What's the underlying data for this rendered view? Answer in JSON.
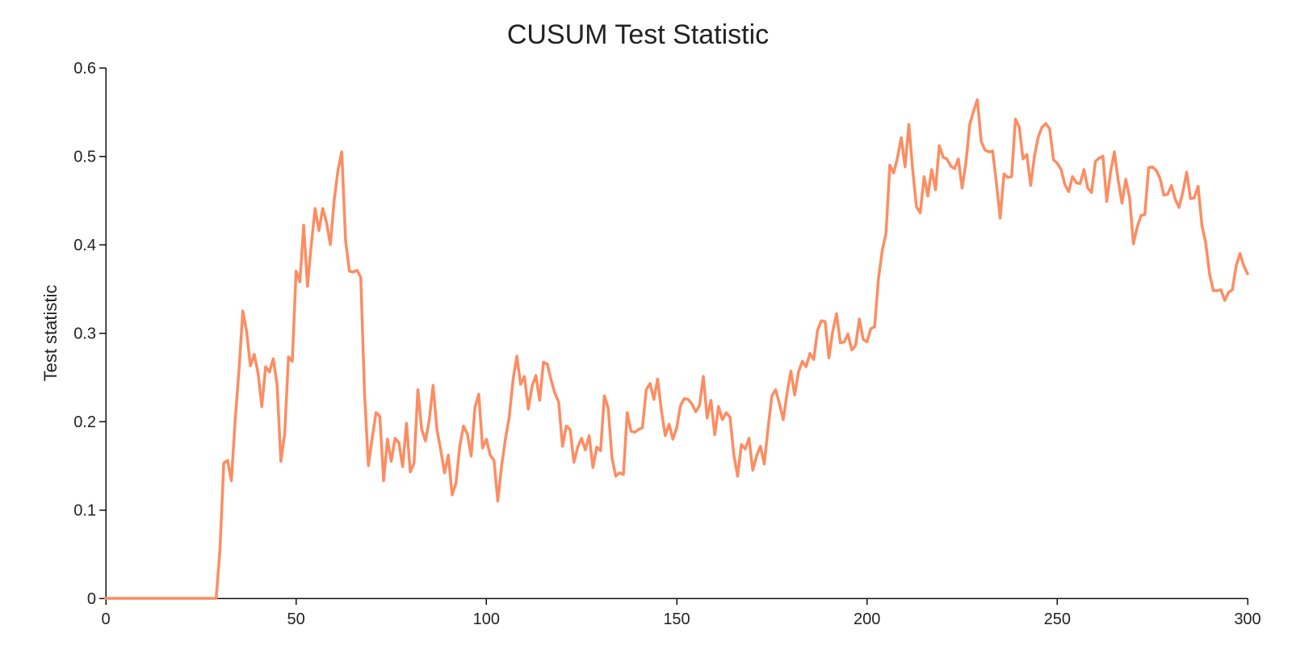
{
  "chart_data": {
    "type": "line",
    "title": "CUSUM Test Statistic",
    "xlabel": "",
    "ylabel": "Test statistic",
    "xlim": [
      0,
      300
    ],
    "ylim": [
      0,
      0.6
    ],
    "xticks": [
      0,
      50,
      100,
      150,
      200,
      250,
      300
    ],
    "yticks": [
      0,
      0.1,
      0.2,
      0.3,
      0.4,
      0.5,
      0.6
    ],
    "xtick_labels": [
      "0",
      "50",
      "100",
      "150",
      "200",
      "250",
      "300"
    ],
    "ytick_labels": [
      "0",
      "0.1",
      "0.2",
      "0.3",
      "0.4",
      "0.5",
      "0.6"
    ],
    "grid": false,
    "legend": "none",
    "series": [
      {
        "color": "#fc8d62",
        "x": [
          0,
          1,
          2,
          3,
          4,
          5,
          6,
          7,
          8,
          9,
          10,
          11,
          12,
          13,
          14,
          15,
          16,
          17,
          18,
          19,
          20,
          21,
          22,
          23,
          24,
          25,
          26,
          27,
          28,
          29,
          30,
          31,
          32,
          33,
          34,
          35,
          36,
          37,
          38,
          39,
          40,
          41,
          42,
          43,
          44,
          45,
          46,
          47,
          48,
          49,
          50,
          51,
          52,
          53,
          54,
          55,
          56,
          57,
          58,
          59,
          60,
          61,
          62,
          63,
          64,
          65,
          66,
          67,
          68,
          69,
          70,
          71,
          72,
          73,
          74,
          75,
          76,
          77,
          78,
          79,
          80,
          81,
          82,
          83,
          84,
          85,
          86,
          87,
          88,
          89,
          90,
          91,
          92,
          93,
          94,
          95,
          96,
          97,
          98,
          99,
          100,
          101,
          102,
          103,
          104,
          105,
          106,
          107,
          108,
          109,
          110,
          111,
          112,
          113,
          114,
          115,
          116,
          117,
          118,
          119,
          120,
          121,
          122,
          123,
          124,
          125,
          126,
          127,
          128,
          129,
          130,
          131,
          132,
          133,
          134,
          135,
          136,
          137,
          138,
          139,
          140,
          141,
          142,
          143,
          144,
          145,
          146,
          147,
          148,
          149,
          150,
          151,
          152,
          153,
          154,
          155,
          156,
          157,
          158,
          159,
          160,
          161,
          162,
          163,
          164,
          165,
          166,
          167,
          168,
          169,
          170,
          171,
          172,
          173,
          174,
          175,
          176,
          177,
          178,
          179,
          180,
          181,
          182,
          183,
          184,
          185,
          186,
          187,
          188,
          189,
          190,
          191,
          192,
          193,
          194,
          195,
          196,
          197,
          198,
          199,
          200,
          201,
          202,
          203,
          204,
          205,
          206,
          207,
          208,
          209,
          210,
          211,
          212,
          213,
          214,
          215,
          216,
          217,
          218,
          219,
          220,
          221,
          222,
          223,
          224,
          225,
          226,
          227,
          228,
          229,
          230,
          231,
          232,
          233,
          234,
          235,
          236,
          237,
          238,
          239,
          240,
          241,
          242,
          243,
          244,
          245,
          246,
          247,
          248,
          249,
          250,
          251,
          252,
          253,
          254,
          255,
          256,
          257,
          258,
          259,
          260,
          261,
          262,
          263,
          264,
          265,
          266,
          267,
          268,
          269,
          270,
          271,
          272,
          273,
          274,
          275,
          276,
          277,
          278,
          279,
          280,
          281,
          282,
          283,
          284,
          285,
          286,
          287,
          288,
          289,
          290,
          291,
          292,
          293,
          294,
          295,
          296,
          297,
          298,
          299,
          300
        ],
        "y": [
          0,
          0,
          0,
          0,
          0,
          0,
          0,
          0,
          0,
          0,
          0,
          0,
          0,
          0,
          0,
          0,
          0,
          0,
          0,
          0,
          0,
          0,
          0,
          0,
          0,
          0,
          0,
          0,
          0,
          0,
          0.055,
          0.153,
          0.156,
          0.133,
          0.202,
          0.258,
          0.325,
          0.302,
          0.263,
          0.276,
          0.255,
          0.217,
          0.262,
          0.256,
          0.271,
          0.242,
          0.155,
          0.186,
          0.273,
          0.268,
          0.37,
          0.358,
          0.422,
          0.353,
          0.4,
          0.441,
          0.416,
          0.441,
          0.425,
          0.4,
          0.45,
          0.484,
          0.505,
          0.405,
          0.37,
          0.369,
          0.371,
          0.363,
          0.23,
          0.15,
          0.181,
          0.21,
          0.206,
          0.133,
          0.18,
          0.155,
          0.181,
          0.176,
          0.149,
          0.198,
          0.143,
          0.153,
          0.236,
          0.191,
          0.178,
          0.202,
          0.241,
          0.191,
          0.168,
          0.142,
          0.162,
          0.117,
          0.13,
          0.172,
          0.195,
          0.186,
          0.161,
          0.216,
          0.231,
          0.17,
          0.18,
          0.162,
          0.156,
          0.11,
          0.15,
          0.18,
          0.205,
          0.247,
          0.274,
          0.242,
          0.251,
          0.214,
          0.24,
          0.252,
          0.224,
          0.267,
          0.265,
          0.247,
          0.232,
          0.222,
          0.172,
          0.195,
          0.191,
          0.154,
          0.171,
          0.181,
          0.168,
          0.184,
          0.148,
          0.171,
          0.167,
          0.229,
          0.215,
          0.159,
          0.138,
          0.142,
          0.14,
          0.21,
          0.189,
          0.188,
          0.191,
          0.193,
          0.236,
          0.243,
          0.225,
          0.248,
          0.212,
          0.184,
          0.197,
          0.18,
          0.193,
          0.218,
          0.226,
          0.225,
          0.22,
          0.211,
          0.218,
          0.251,
          0.204,
          0.224,
          0.185,
          0.217,
          0.202,
          0.21,
          0.205,
          0.163,
          0.138,
          0.174,
          0.169,
          0.181,
          0.145,
          0.161,
          0.172,
          0.152,
          0.192,
          0.229,
          0.236,
          0.22,
          0.202,
          0.232,
          0.257,
          0.23,
          0.256,
          0.268,
          0.262,
          0.277,
          0.27,
          0.303,
          0.314,
          0.313,
          0.272,
          0.302,
          0.322,
          0.289,
          0.29,
          0.299,
          0.281,
          0.286,
          0.316,
          0.293,
          0.29,
          0.305,
          0.307,
          0.361,
          0.393,
          0.413,
          0.49,
          0.481,
          0.498,
          0.521,
          0.488,
          0.536,
          0.485,
          0.443,
          0.436,
          0.477,
          0.455,
          0.485,
          0.462,
          0.512,
          0.499,
          0.497,
          0.489,
          0.486,
          0.497,
          0.464,
          0.493,
          0.536,
          0.551,
          0.564,
          0.517,
          0.507,
          0.505,
          0.506,
          0.47,
          0.43,
          0.48,
          0.476,
          0.477,
          0.542,
          0.533,
          0.497,
          0.502,
          0.467,
          0.5,
          0.522,
          0.533,
          0.537,
          0.531,
          0.496,
          0.492,
          0.485,
          0.468,
          0.46,
          0.477,
          0.47,
          0.469,
          0.485,
          0.464,
          0.459,
          0.494,
          0.498,
          0.5,
          0.449,
          0.482,
          0.505,
          0.473,
          0.447,
          0.474,
          0.453,
          0.401,
          0.42,
          0.433,
          0.434,
          0.487,
          0.488,
          0.484,
          0.475,
          0.456,
          0.457,
          0.467,
          0.451,
          0.442,
          0.46,
          0.482,
          0.452,
          0.453,
          0.466,
          0.422,
          0.402,
          0.367,
          0.348,
          0.348,
          0.349,
          0.337,
          0.346,
          0.349,
          0.376,
          0.39,
          0.376,
          0.367
        ]
      }
    ]
  }
}
